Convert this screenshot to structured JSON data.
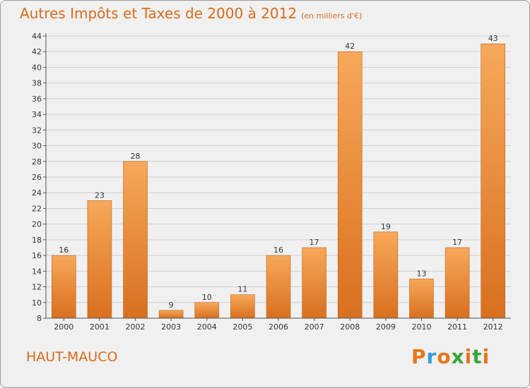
{
  "header": {
    "title": "Autres Impôts et Taxes de 2000 à 2012",
    "unit": "(en milliers d'€)"
  },
  "footer": {
    "city": "HAUT-MAUCO",
    "logo": "Proxiti",
    "logo_colors": [
      "#e8751a",
      "#3a9ad9",
      "#e8751a",
      "#3aa63a",
      "#e8751a",
      "#3aa63a",
      "#e8751a"
    ]
  },
  "colors": {
    "accent": "#d96b1a",
    "bar_light": "#f7a85a",
    "bar_dark": "#d8701f",
    "grid": "#d0d0d0",
    "background": "#f0f0f0"
  },
  "chart_data": {
    "type": "bar",
    "categories": [
      "2000",
      "2001",
      "2002",
      "2003",
      "2004",
      "2005",
      "2006",
      "2007",
      "2008",
      "2009",
      "2010",
      "2011",
      "2012"
    ],
    "values": [
      16,
      23,
      28,
      9,
      10,
      11,
      16,
      17,
      42,
      19,
      13,
      17,
      43
    ],
    "title": "Autres Impôts et Taxes de 2000 à 2012",
    "ylabel": "",
    "xlabel": "",
    "ylim": [
      8,
      44
    ],
    "yticks": [
      8,
      10,
      12,
      14,
      16,
      18,
      20,
      22,
      24,
      26,
      28,
      30,
      32,
      34,
      36,
      38,
      40,
      42,
      44
    ],
    "grid": true,
    "data_labels": true
  }
}
